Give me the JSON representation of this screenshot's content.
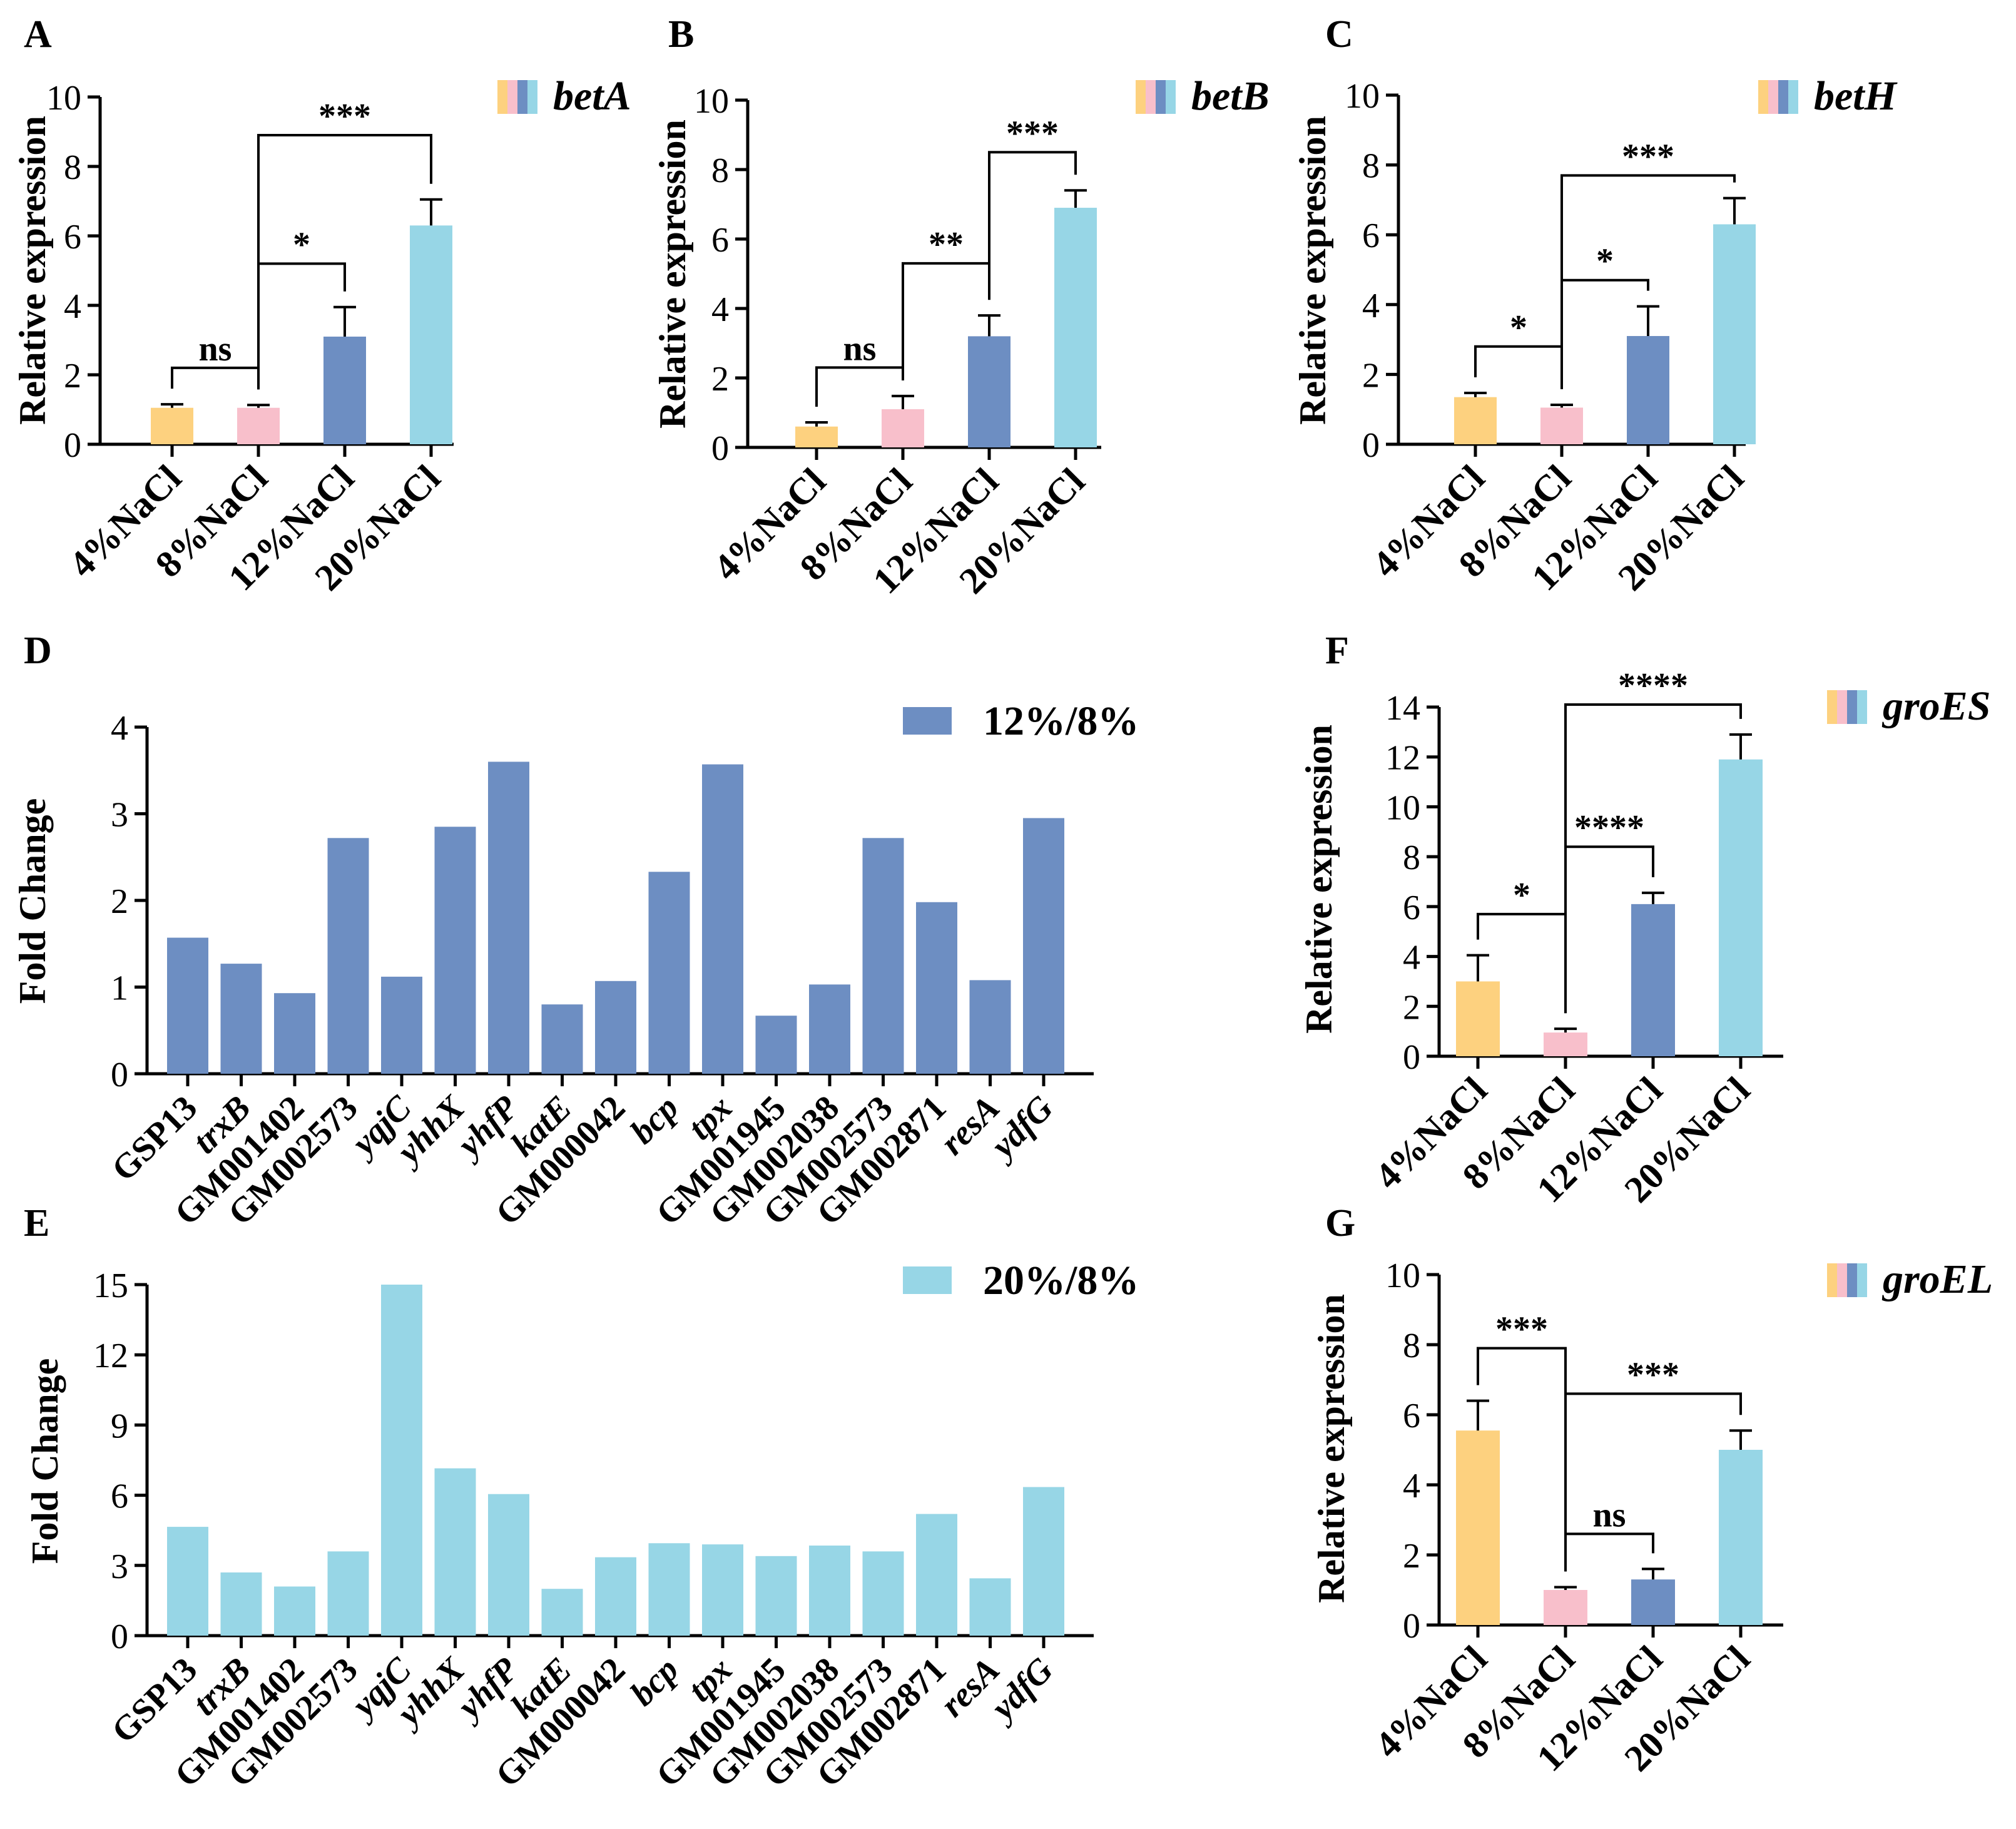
{
  "colors": {
    "c4": "#FDD17F",
    "c8": "#F8BFCB",
    "c12": "#6D8EC2",
    "c20": "#97D6E6",
    "axis": "#000000"
  },
  "chart_data": [
    {
      "id": "A",
      "panel_label": "A",
      "type": "bar",
      "gene": "betA",
      "categories": [
        "4%NaCl",
        "8%NaCl",
        "12%NaCl",
        "20%NaCl"
      ],
      "values": [
        1.05,
        1.05,
        3.1,
        6.3
      ],
      "errors": [
        0.1,
        0.08,
        0.85,
        0.75
      ],
      "ylabel": "Relative expression",
      "ylim": [
        0,
        10
      ],
      "yticks": [
        "0",
        "2",
        "4",
        "6",
        "8",
        "10"
      ],
      "significance": [
        {
          "from": 0,
          "to": 1,
          "label": "ns",
          "y": 2.2
        },
        {
          "from": 1,
          "to": 2,
          "label": "*",
          "y": 5.2
        },
        {
          "from": 1,
          "to": 3,
          "label": "***",
          "y": 8.9
        }
      ]
    },
    {
      "id": "B",
      "panel_label": "B",
      "type": "bar",
      "gene": "betB",
      "categories": [
        "4%NaCl",
        "8%NaCl",
        "12%NaCl",
        "20%NaCl"
      ],
      "values": [
        0.6,
        1.1,
        3.2,
        6.9
      ],
      "errors": [
        0.12,
        0.38,
        0.6,
        0.5
      ],
      "ylabel": "Relative expression",
      "ylim": [
        0,
        10
      ],
      "yticks": [
        "0",
        "2",
        "4",
        "6",
        "8",
        "10"
      ],
      "significance": [
        {
          "from": 0,
          "to": 1,
          "label": "ns",
          "y": 2.3
        },
        {
          "from": 1,
          "to": 2,
          "label": "**",
          "y": 5.3
        },
        {
          "from": 2,
          "to": 3,
          "label": "***",
          "y": 8.5
        }
      ]
    },
    {
      "id": "C",
      "panel_label": "C",
      "type": "bar",
      "gene": "betH",
      "categories": [
        "4%NaCl",
        "8%NaCl",
        "12%NaCl",
        "20%NaCl"
      ],
      "values": [
        1.35,
        1.05,
        3.1,
        6.3
      ],
      "errors": [
        0.12,
        0.08,
        0.85,
        0.75
      ],
      "ylabel": "Relative expression",
      "ylim": [
        0,
        10
      ],
      "yticks": [
        "0",
        "2",
        "4",
        "6",
        "8",
        "10"
      ],
      "significance": [
        {
          "from": 0,
          "to": 1,
          "label": "*",
          "y": 2.8
        },
        {
          "from": 1,
          "to": 2,
          "label": "*",
          "y": 4.7
        },
        {
          "from": 1,
          "to": 3,
          "label": "***",
          "y": 7.7
        }
      ]
    },
    {
      "id": "D",
      "panel_label": "D",
      "type": "bar",
      "legend": "12%/8%",
      "categories": [
        "GSP13",
        "trxB",
        "GM001402",
        "GM002573",
        "yqjC",
        "yhhX",
        "yhfP",
        "katE",
        "GM000042",
        "bcp",
        "tpx",
        "GM001945",
        "GM002038",
        "GM002573",
        "GM002871",
        "resA",
        "ydfG"
      ],
      "values": [
        1.57,
        1.27,
        0.93,
        2.72,
        1.12,
        2.85,
        3.6,
        0.8,
        1.07,
        2.33,
        3.57,
        0.67,
        1.03,
        2.72,
        1.98,
        1.08,
        2.95
      ],
      "ylabel": "Fold Change",
      "ylim": [
        0,
        4
      ],
      "yticks": [
        "0",
        "1",
        "2",
        "3",
        "4"
      ]
    },
    {
      "id": "E",
      "panel_label": "E",
      "type": "bar",
      "legend": "20%/8%",
      "categories": [
        "GSP13",
        "trxB",
        "GM001402",
        "GM002573",
        "yqjC",
        "yhhX",
        "yhfP",
        "katE",
        "GM000042",
        "bcp",
        "tpx",
        "GM001945",
        "GM002038",
        "GM002573",
        "GM002871",
        "resA",
        "ydfG"
      ],
      "values": [
        4.65,
        2.7,
        2.1,
        3.6,
        15,
        7.15,
        6.05,
        2.0,
        3.35,
        3.95,
        3.9,
        3.4,
        3.85,
        3.6,
        5.2,
        2.45,
        6.35
      ],
      "ylabel": "Fold Change",
      "ylim": [
        0,
        15
      ],
      "yticks": [
        "0",
        "3",
        "6",
        "9",
        "12",
        "15"
      ]
    },
    {
      "id": "F",
      "panel_label": "F",
      "type": "bar",
      "gene": "groES",
      "categories": [
        "4%NaCl",
        "8%NaCl",
        "12%NaCl",
        "20%NaCl"
      ],
      "values": [
        3.0,
        0.95,
        6.1,
        11.9
      ],
      "errors": [
        1.05,
        0.15,
        0.45,
        1.0
      ],
      "ylabel": "Relative expression",
      "ylim": [
        0,
        14
      ],
      "yticks": [
        "0",
        "2",
        "4",
        "6",
        "8",
        "10",
        "12",
        "14"
      ],
      "significance": [
        {
          "from": 0,
          "to": 1,
          "label": "*",
          "y": 5.7
        },
        {
          "from": 1,
          "to": 2,
          "label": "****",
          "y": 8.4
        },
        {
          "from": 1,
          "to": 3,
          "label": "****",
          "y": 14.1
        }
      ]
    },
    {
      "id": "G",
      "panel_label": "G",
      "type": "bar",
      "gene": "groEL",
      "categories": [
        "4%NaCl",
        "8%NaCl",
        "12%NaCl",
        "20%NaCl"
      ],
      "values": [
        5.55,
        1.0,
        1.3,
        5.0
      ],
      "errors": [
        0.85,
        0.08,
        0.3,
        0.55
      ],
      "ylabel": "Relative expression",
      "ylim": [
        0,
        10
      ],
      "yticks": [
        "0",
        "2",
        "4",
        "6",
        "8",
        "10"
      ],
      "significance": [
        {
          "from": 0,
          "to": 1,
          "label": "***",
          "y": 7.9
        },
        {
          "from": 1,
          "to": 2,
          "label": "ns",
          "y": 2.6
        },
        {
          "from": 1,
          "to": 3,
          "label": "***",
          "y": 6.6
        }
      ]
    }
  ]
}
